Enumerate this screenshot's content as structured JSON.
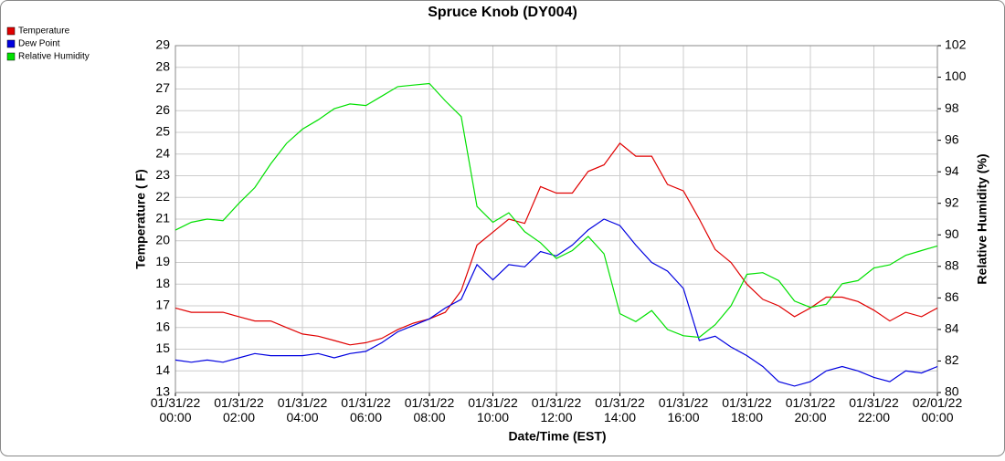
{
  "chart_data": {
    "type": "line",
    "title": "Spruce Knob (DY004)",
    "x_label": "Date/Time (EST)",
    "y_label": "Temperature ( F)",
    "y2_label": "Relative Humidity (%)",
    "x": [
      "01/31/22 00:00",
      "01/31/22 00:30",
      "01/31/22 01:00",
      "01/31/22 01:30",
      "01/31/22 02:00",
      "01/31/22 02:30",
      "01/31/22 03:00",
      "01/31/22 03:30",
      "01/31/22 04:00",
      "01/31/22 04:30",
      "01/31/22 05:00",
      "01/31/22 05:30",
      "01/31/22 06:00",
      "01/31/22 06:30",
      "01/31/22 07:00",
      "01/31/22 07:30",
      "01/31/22 08:00",
      "01/31/22 08:30",
      "01/31/22 09:00",
      "01/31/22 09:30",
      "01/31/22 10:00",
      "01/31/22 10:30",
      "01/31/22 11:00",
      "01/31/22 11:30",
      "01/31/22 12:00",
      "01/31/22 12:30",
      "01/31/22 13:00",
      "01/31/22 13:30",
      "01/31/22 14:00",
      "01/31/22 14:30",
      "01/31/22 15:00",
      "01/31/22 15:30",
      "01/31/22 16:00",
      "01/31/22 16:30",
      "01/31/22 17:00",
      "01/31/22 17:30",
      "01/31/22 18:00",
      "01/31/22 18:30",
      "01/31/22 19:00",
      "01/31/22 19:30",
      "01/31/22 20:00",
      "01/31/22 20:30",
      "01/31/22 21:00",
      "01/31/22 21:30",
      "01/31/22 22:00",
      "01/31/22 22:30",
      "01/31/22 23:00",
      "01/31/22 23:30",
      "02/01/22 00:00"
    ],
    "series": [
      {
        "name": "Temperature",
        "color": "#e00000",
        "values": [
          16.9,
          16.7,
          16.7,
          16.7,
          16.5,
          16.3,
          16.3,
          16.0,
          15.7,
          15.6,
          15.4,
          15.2,
          15.3,
          15.5,
          15.9,
          16.2,
          16.4,
          16.7,
          17.7,
          19.8,
          20.4,
          21.0,
          20.8,
          22.5,
          22.2,
          22.2,
          23.2,
          23.5,
          24.5,
          23.9,
          23.9,
          22.6,
          22.3,
          21.0,
          19.6,
          19.0,
          18.0,
          17.3,
          17.0,
          16.5,
          16.9,
          17.4,
          17.4,
          17.2,
          16.8,
          16.3,
          16.7,
          16.5,
          16.9
        ]
      },
      {
        "name": "Dew Point",
        "color": "#0000e0",
        "values": [
          14.5,
          14.4,
          14.5,
          14.4,
          14.6,
          14.8,
          14.7,
          14.7,
          14.7,
          14.8,
          14.6,
          14.8,
          14.9,
          15.3,
          15.8,
          16.1,
          16.4,
          16.9,
          17.3,
          18.9,
          18.2,
          18.9,
          18.8,
          19.5,
          19.3,
          19.8,
          20.5,
          21.0,
          20.7,
          19.8,
          19.0,
          18.6,
          17.8,
          15.4,
          15.6,
          15.1,
          14.7,
          14.2,
          13.5,
          13.3,
          13.5,
          14.0,
          14.2,
          14.0,
          13.7,
          13.5,
          14.0,
          13.9,
          14.2
        ]
      },
      {
        "name": "Relative Humidity",
        "color": "#00e000",
        "axis": "y2",
        "values": [
          90.3,
          90.8,
          91.0,
          90.9,
          92.0,
          93.0,
          94.5,
          95.8,
          96.7,
          97.3,
          98.0,
          98.3,
          98.2,
          98.8,
          99.4,
          99.5,
          99.6,
          98.5,
          97.5,
          91.8,
          90.8,
          91.4,
          90.2,
          89.5,
          88.5,
          89.0,
          89.9,
          88.8,
          85.0,
          84.5,
          85.2,
          84.0,
          83.6,
          83.5,
          84.3,
          85.5,
          87.5,
          87.6,
          87.1,
          85.8,
          85.4,
          85.6,
          86.9,
          87.1,
          87.9,
          88.1,
          88.7,
          89.0,
          89.3
        ]
      }
    ],
    "xlim": [
      "01/31/22 00:00",
      "02/01/22 00:00"
    ],
    "xticks": [
      "01/31/22 00:00",
      "01/31/22 02:00",
      "01/31/22 04:00",
      "01/31/22 06:00",
      "01/31/22 08:00",
      "01/31/22 10:00",
      "01/31/22 12:00",
      "01/31/22 14:00",
      "01/31/22 16:00",
      "01/31/22 18:00",
      "01/31/22 20:00",
      "01/31/22 22:00",
      "02/01/22 00:00"
    ],
    "ylim": [
      13,
      29
    ],
    "yticks": [
      13,
      14,
      15,
      16,
      17,
      18,
      19,
      20,
      21,
      22,
      23,
      24,
      25,
      26,
      27,
      28,
      29
    ],
    "y2lim": [
      80,
      102
    ],
    "y2ticks": [
      80,
      82,
      84,
      86,
      88,
      90,
      92,
      94,
      96,
      98,
      100,
      102
    ],
    "grid": true,
    "legend": "top-left"
  }
}
